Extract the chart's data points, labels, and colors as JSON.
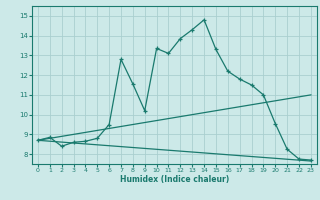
{
  "xlabel": "Humidex (Indice chaleur)",
  "xlim": [
    -0.5,
    23.5
  ],
  "ylim": [
    7.5,
    15.5
  ],
  "xticks": [
    0,
    1,
    2,
    3,
    4,
    5,
    6,
    7,
    8,
    9,
    10,
    11,
    12,
    13,
    14,
    15,
    16,
    17,
    18,
    19,
    20,
    21,
    22,
    23
  ],
  "yticks": [
    8,
    9,
    10,
    11,
    12,
    13,
    14,
    15
  ],
  "background_color": "#cce9e8",
  "grid_color": "#aacfcf",
  "line_color": "#1a7a6e",
  "line1_x": [
    0,
    1,
    2,
    3,
    4,
    5,
    6,
    7,
    8,
    9,
    10,
    11,
    12,
    13,
    14,
    15,
    16,
    17,
    18,
    19,
    20,
    21,
    22,
    23
  ],
  "line1_y": [
    8.7,
    8.85,
    8.4,
    8.6,
    8.65,
    8.8,
    9.5,
    12.8,
    11.55,
    10.2,
    13.35,
    13.1,
    13.85,
    14.3,
    14.8,
    13.3,
    12.2,
    11.8,
    11.5,
    11.0,
    9.55,
    8.25,
    7.75,
    7.7
  ],
  "line2_x": [
    0,
    23
  ],
  "line2_y": [
    8.7,
    11.0
  ],
  "line3_x": [
    0,
    23
  ],
  "line3_y": [
    8.7,
    7.65
  ]
}
